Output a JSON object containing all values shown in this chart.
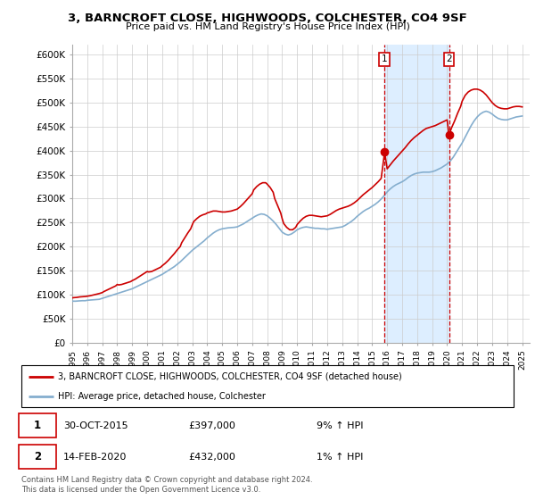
{
  "title": "3, BARNCROFT CLOSE, HIGHWOODS, COLCHESTER, CO4 9SF",
  "subtitle": "Price paid vs. HM Land Registry's House Price Index (HPI)",
  "ylabel_ticks": [
    "£0",
    "£50K",
    "£100K",
    "£150K",
    "£200K",
    "£250K",
    "£300K",
    "£350K",
    "£400K",
    "£450K",
    "£500K",
    "£550K",
    "£600K"
  ],
  "ylim": [
    0,
    620000
  ],
  "yticks": [
    0,
    50000,
    100000,
    150000,
    200000,
    250000,
    300000,
    350000,
    400000,
    450000,
    500000,
    550000,
    600000
  ],
  "xlim_start": 1995.0,
  "xlim_end": 2025.5,
  "bg_color": "#ffffff",
  "plot_bg_color": "#ffffff",
  "grid_color": "#cccccc",
  "red_color": "#cc0000",
  "blue_color": "#85aece",
  "marker1_x": 2015.83,
  "marker2_x": 2020.12,
  "marker1_price": 397000,
  "marker2_price": 432000,
  "marker1_date": "30-OCT-2015",
  "marker2_date": "14-FEB-2020",
  "marker1_hpi": "9% ↑ HPI",
  "marker2_hpi": "1% ↑ HPI",
  "legend_label_red": "3, BARNCROFT CLOSE, HIGHWOODS, COLCHESTER, CO4 9SF (detached house)",
  "legend_label_blue": "HPI: Average price, detached house, Colchester",
  "footer": "Contains HM Land Registry data © Crown copyright and database right 2024.\nThis data is licensed under the Open Government Licence v3.0.",
  "shaded_region_color": "#ddeeff",
  "hpi_data": [
    [
      1995.0,
      86000
    ],
    [
      1995.1,
      86200
    ],
    [
      1995.2,
      86100
    ],
    [
      1995.3,
      86400
    ],
    [
      1995.4,
      86600
    ],
    [
      1995.5,
      86800
    ],
    [
      1995.6,
      87000
    ],
    [
      1995.7,
      87200
    ],
    [
      1995.8,
      87100
    ],
    [
      1995.9,
      87300
    ],
    [
      1996.0,
      88000
    ],
    [
      1996.2,
      88500
    ],
    [
      1996.4,
      89000
    ],
    [
      1996.6,
      89500
    ],
    [
      1996.8,
      90000
    ],
    [
      1997.0,
      92000
    ],
    [
      1997.2,
      94000
    ],
    [
      1997.4,
      96000
    ],
    [
      1997.6,
      98000
    ],
    [
      1997.8,
      100000
    ],
    [
      1998.0,
      102000
    ],
    [
      1998.2,
      104000
    ],
    [
      1998.4,
      106000
    ],
    [
      1998.6,
      108000
    ],
    [
      1998.8,
      110000
    ],
    [
      1999.0,
      112000
    ],
    [
      1999.2,
      115000
    ],
    [
      1999.4,
      118000
    ],
    [
      1999.6,
      121000
    ],
    [
      1999.8,
      124000
    ],
    [
      2000.0,
      127000
    ],
    [
      2000.2,
      130000
    ],
    [
      2000.4,
      133000
    ],
    [
      2000.6,
      136000
    ],
    [
      2000.8,
      139000
    ],
    [
      2001.0,
      142000
    ],
    [
      2001.2,
      146000
    ],
    [
      2001.4,
      150000
    ],
    [
      2001.6,
      154000
    ],
    [
      2001.8,
      158000
    ],
    [
      2002.0,
      163000
    ],
    [
      2002.2,
      168000
    ],
    [
      2002.4,
      174000
    ],
    [
      2002.6,
      180000
    ],
    [
      2002.8,
      186000
    ],
    [
      2003.0,
      192000
    ],
    [
      2003.2,
      197000
    ],
    [
      2003.4,
      202000
    ],
    [
      2003.6,
      207000
    ],
    [
      2003.8,
      212000
    ],
    [
      2004.0,
      218000
    ],
    [
      2004.2,
      223000
    ],
    [
      2004.4,
      228000
    ],
    [
      2004.6,
      232000
    ],
    [
      2004.8,
      235000
    ],
    [
      2005.0,
      237000
    ],
    [
      2005.2,
      238000
    ],
    [
      2005.4,
      239000
    ],
    [
      2005.6,
      239500
    ],
    [
      2005.8,
      240000
    ],
    [
      2006.0,
      241000
    ],
    [
      2006.2,
      244000
    ],
    [
      2006.4,
      247000
    ],
    [
      2006.6,
      251000
    ],
    [
      2006.8,
      255000
    ],
    [
      2007.0,
      259000
    ],
    [
      2007.2,
      263000
    ],
    [
      2007.4,
      266000
    ],
    [
      2007.6,
      268000
    ],
    [
      2007.8,
      267000
    ],
    [
      2008.0,
      264000
    ],
    [
      2008.2,
      259000
    ],
    [
      2008.4,
      253000
    ],
    [
      2008.6,
      246000
    ],
    [
      2008.8,
      238000
    ],
    [
      2009.0,
      230000
    ],
    [
      2009.2,
      226000
    ],
    [
      2009.4,
      224000
    ],
    [
      2009.6,
      226000
    ],
    [
      2009.8,
      230000
    ],
    [
      2010.0,
      235000
    ],
    [
      2010.2,
      238000
    ],
    [
      2010.4,
      240000
    ],
    [
      2010.6,
      241000
    ],
    [
      2010.8,
      240000
    ],
    [
      2011.0,
      239000
    ],
    [
      2011.2,
      238000
    ],
    [
      2011.4,
      238000
    ],
    [
      2011.6,
      237000
    ],
    [
      2011.8,
      237000
    ],
    [
      2012.0,
      236000
    ],
    [
      2012.2,
      237000
    ],
    [
      2012.4,
      238000
    ],
    [
      2012.6,
      239000
    ],
    [
      2012.8,
      240000
    ],
    [
      2013.0,
      241000
    ],
    [
      2013.2,
      244000
    ],
    [
      2013.4,
      248000
    ],
    [
      2013.6,
      252000
    ],
    [
      2013.8,
      257000
    ],
    [
      2014.0,
      263000
    ],
    [
      2014.2,
      268000
    ],
    [
      2014.4,
      273000
    ],
    [
      2014.6,
      277000
    ],
    [
      2014.8,
      280000
    ],
    [
      2015.0,
      284000
    ],
    [
      2015.2,
      288000
    ],
    [
      2015.4,
      293000
    ],
    [
      2015.6,
      299000
    ],
    [
      2015.8,
      306000
    ],
    [
      2016.0,
      314000
    ],
    [
      2016.2,
      320000
    ],
    [
      2016.4,
      325000
    ],
    [
      2016.6,
      329000
    ],
    [
      2016.8,
      332000
    ],
    [
      2017.0,
      335000
    ],
    [
      2017.2,
      339000
    ],
    [
      2017.4,
      344000
    ],
    [
      2017.6,
      348000
    ],
    [
      2017.8,
      351000
    ],
    [
      2018.0,
      353000
    ],
    [
      2018.2,
      354000
    ],
    [
      2018.4,
      355000
    ],
    [
      2018.6,
      355000
    ],
    [
      2018.8,
      355000
    ],
    [
      2019.0,
      356000
    ],
    [
      2019.2,
      358000
    ],
    [
      2019.4,
      361000
    ],
    [
      2019.6,
      364000
    ],
    [
      2019.8,
      368000
    ],
    [
      2020.0,
      372000
    ],
    [
      2020.2,
      378000
    ],
    [
      2020.4,
      386000
    ],
    [
      2020.6,
      396000
    ],
    [
      2020.8,
      406000
    ],
    [
      2021.0,
      416000
    ],
    [
      2021.2,
      428000
    ],
    [
      2021.4,
      440000
    ],
    [
      2021.6,
      452000
    ],
    [
      2021.8,
      462000
    ],
    [
      2022.0,
      470000
    ],
    [
      2022.2,
      476000
    ],
    [
      2022.4,
      480000
    ],
    [
      2022.6,
      482000
    ],
    [
      2022.8,
      480000
    ],
    [
      2023.0,
      476000
    ],
    [
      2023.2,
      471000
    ],
    [
      2023.4,
      467000
    ],
    [
      2023.6,
      465000
    ],
    [
      2023.8,
      464000
    ],
    [
      2024.0,
      464000
    ],
    [
      2024.2,
      466000
    ],
    [
      2024.4,
      468000
    ],
    [
      2024.6,
      470000
    ],
    [
      2024.8,
      471000
    ],
    [
      2025.0,
      472000
    ]
  ],
  "prop_data": [
    [
      1995.0,
      93000
    ],
    [
      1995.1,
      93500
    ],
    [
      1995.3,
      94000
    ],
    [
      1995.5,
      95000
    ],
    [
      1995.7,
      95500
    ],
    [
      1995.9,
      96000
    ],
    [
      1996.0,
      96500
    ],
    [
      1996.2,
      97500
    ],
    [
      1996.4,
      99000
    ],
    [
      1996.6,
      100500
    ],
    [
      1996.8,
      102000
    ],
    [
      1997.0,
      104000
    ],
    [
      1997.1,
      106000
    ],
    [
      1997.3,
      109000
    ],
    [
      1997.5,
      112000
    ],
    [
      1997.7,
      115000
    ],
    [
      1997.9,
      118000
    ],
    [
      1998.0,
      121000
    ],
    [
      1998.1,
      120000
    ],
    [
      1998.3,
      121000
    ],
    [
      1998.5,
      123000
    ],
    [
      1998.7,
      125000
    ],
    [
      1998.9,
      127000
    ],
    [
      1999.0,
      129000
    ],
    [
      1999.2,
      132000
    ],
    [
      1999.4,
      136000
    ],
    [
      1999.6,
      140000
    ],
    [
      1999.8,
      144000
    ],
    [
      2000.0,
      148000
    ],
    [
      2000.1,
      147000
    ],
    [
      2000.3,
      148000
    ],
    [
      2000.5,
      151000
    ],
    [
      2000.7,
      154000
    ],
    [
      2000.9,
      157000
    ],
    [
      2001.0,
      160000
    ],
    [
      2001.2,
      165000
    ],
    [
      2001.4,
      171000
    ],
    [
      2001.6,
      178000
    ],
    [
      2001.8,
      185000
    ],
    [
      2002.0,
      193000
    ],
    [
      2002.2,
      200000
    ],
    [
      2002.3,
      208000
    ],
    [
      2002.5,
      218000
    ],
    [
      2002.7,
      228000
    ],
    [
      2002.9,
      237000
    ],
    [
      2003.0,
      245000
    ],
    [
      2003.1,
      252000
    ],
    [
      2003.3,
      258000
    ],
    [
      2003.5,
      263000
    ],
    [
      2003.7,
      266000
    ],
    [
      2003.9,
      268000
    ],
    [
      2004.0,
      270000
    ],
    [
      2004.2,
      272000
    ],
    [
      2004.4,
      274000
    ],
    [
      2004.6,
      274000
    ],
    [
      2004.8,
      273000
    ],
    [
      2005.0,
      272000
    ],
    [
      2005.2,
      272000
    ],
    [
      2005.4,
      273000
    ],
    [
      2005.6,
      274000
    ],
    [
      2005.8,
      276000
    ],
    [
      2006.0,
      278000
    ],
    [
      2006.2,
      283000
    ],
    [
      2006.4,
      289000
    ],
    [
      2006.6,
      296000
    ],
    [
      2006.8,
      303000
    ],
    [
      2007.0,
      310000
    ],
    [
      2007.1,
      318000
    ],
    [
      2007.3,
      325000
    ],
    [
      2007.5,
      330000
    ],
    [
      2007.7,
      333000
    ],
    [
      2007.9,
      333000
    ],
    [
      2008.0,
      330000
    ],
    [
      2008.2,
      323000
    ],
    [
      2008.4,
      313000
    ],
    [
      2008.5,
      300000
    ],
    [
      2008.7,
      285000
    ],
    [
      2008.9,
      270000
    ],
    [
      2009.0,
      258000
    ],
    [
      2009.1,
      248000
    ],
    [
      2009.3,
      240000
    ],
    [
      2009.5,
      235000
    ],
    [
      2009.7,
      235000
    ],
    [
      2009.9,
      240000
    ],
    [
      2010.0,
      246000
    ],
    [
      2010.2,
      253000
    ],
    [
      2010.4,
      259000
    ],
    [
      2010.6,
      263000
    ],
    [
      2010.8,
      265000
    ],
    [
      2011.0,
      265000
    ],
    [
      2011.2,
      264000
    ],
    [
      2011.4,
      263000
    ],
    [
      2011.6,
      262000
    ],
    [
      2011.8,
      263000
    ],
    [
      2012.0,
      264000
    ],
    [
      2012.2,
      267000
    ],
    [
      2012.4,
      271000
    ],
    [
      2012.6,
      275000
    ],
    [
      2012.8,
      278000
    ],
    [
      2013.0,
      280000
    ],
    [
      2013.2,
      282000
    ],
    [
      2013.4,
      284000
    ],
    [
      2013.6,
      287000
    ],
    [
      2013.8,
      291000
    ],
    [
      2014.0,
      296000
    ],
    [
      2014.2,
      302000
    ],
    [
      2014.4,
      308000
    ],
    [
      2014.6,
      313000
    ],
    [
      2014.8,
      318000
    ],
    [
      2015.0,
      323000
    ],
    [
      2015.2,
      329000
    ],
    [
      2015.4,
      335000
    ],
    [
      2015.6,
      342000
    ],
    [
      2015.83,
      397000
    ],
    [
      2016.0,
      362000
    ],
    [
      2016.2,
      370000
    ],
    [
      2016.4,
      378000
    ],
    [
      2016.6,
      385000
    ],
    [
      2016.8,
      392000
    ],
    [
      2017.0,
      399000
    ],
    [
      2017.2,
      406000
    ],
    [
      2017.4,
      414000
    ],
    [
      2017.6,
      421000
    ],
    [
      2017.8,
      427000
    ],
    [
      2018.0,
      432000
    ],
    [
      2018.2,
      437000
    ],
    [
      2018.4,
      442000
    ],
    [
      2018.6,
      446000
    ],
    [
      2018.8,
      448000
    ],
    [
      2019.0,
      450000
    ],
    [
      2019.2,
      452000
    ],
    [
      2019.4,
      455000
    ],
    [
      2019.6,
      458000
    ],
    [
      2019.8,
      461000
    ],
    [
      2020.0,
      464000
    ],
    [
      2020.12,
      432000
    ],
    [
      2020.3,
      448000
    ],
    [
      2020.5,
      462000
    ],
    [
      2020.7,
      478000
    ],
    [
      2020.9,
      492000
    ],
    [
      2021.0,
      503000
    ],
    [
      2021.2,
      515000
    ],
    [
      2021.4,
      522000
    ],
    [
      2021.6,
      526000
    ],
    [
      2021.8,
      528000
    ],
    [
      2022.0,
      528000
    ],
    [
      2022.2,
      526000
    ],
    [
      2022.4,
      522000
    ],
    [
      2022.6,
      516000
    ],
    [
      2022.8,
      508000
    ],
    [
      2023.0,
      500000
    ],
    [
      2023.2,
      494000
    ],
    [
      2023.4,
      490000
    ],
    [
      2023.6,
      488000
    ],
    [
      2023.8,
      487000
    ],
    [
      2024.0,
      487000
    ],
    [
      2024.2,
      489000
    ],
    [
      2024.4,
      491000
    ],
    [
      2024.6,
      492000
    ],
    [
      2024.8,
      492000
    ],
    [
      2025.0,
      491000
    ]
  ]
}
